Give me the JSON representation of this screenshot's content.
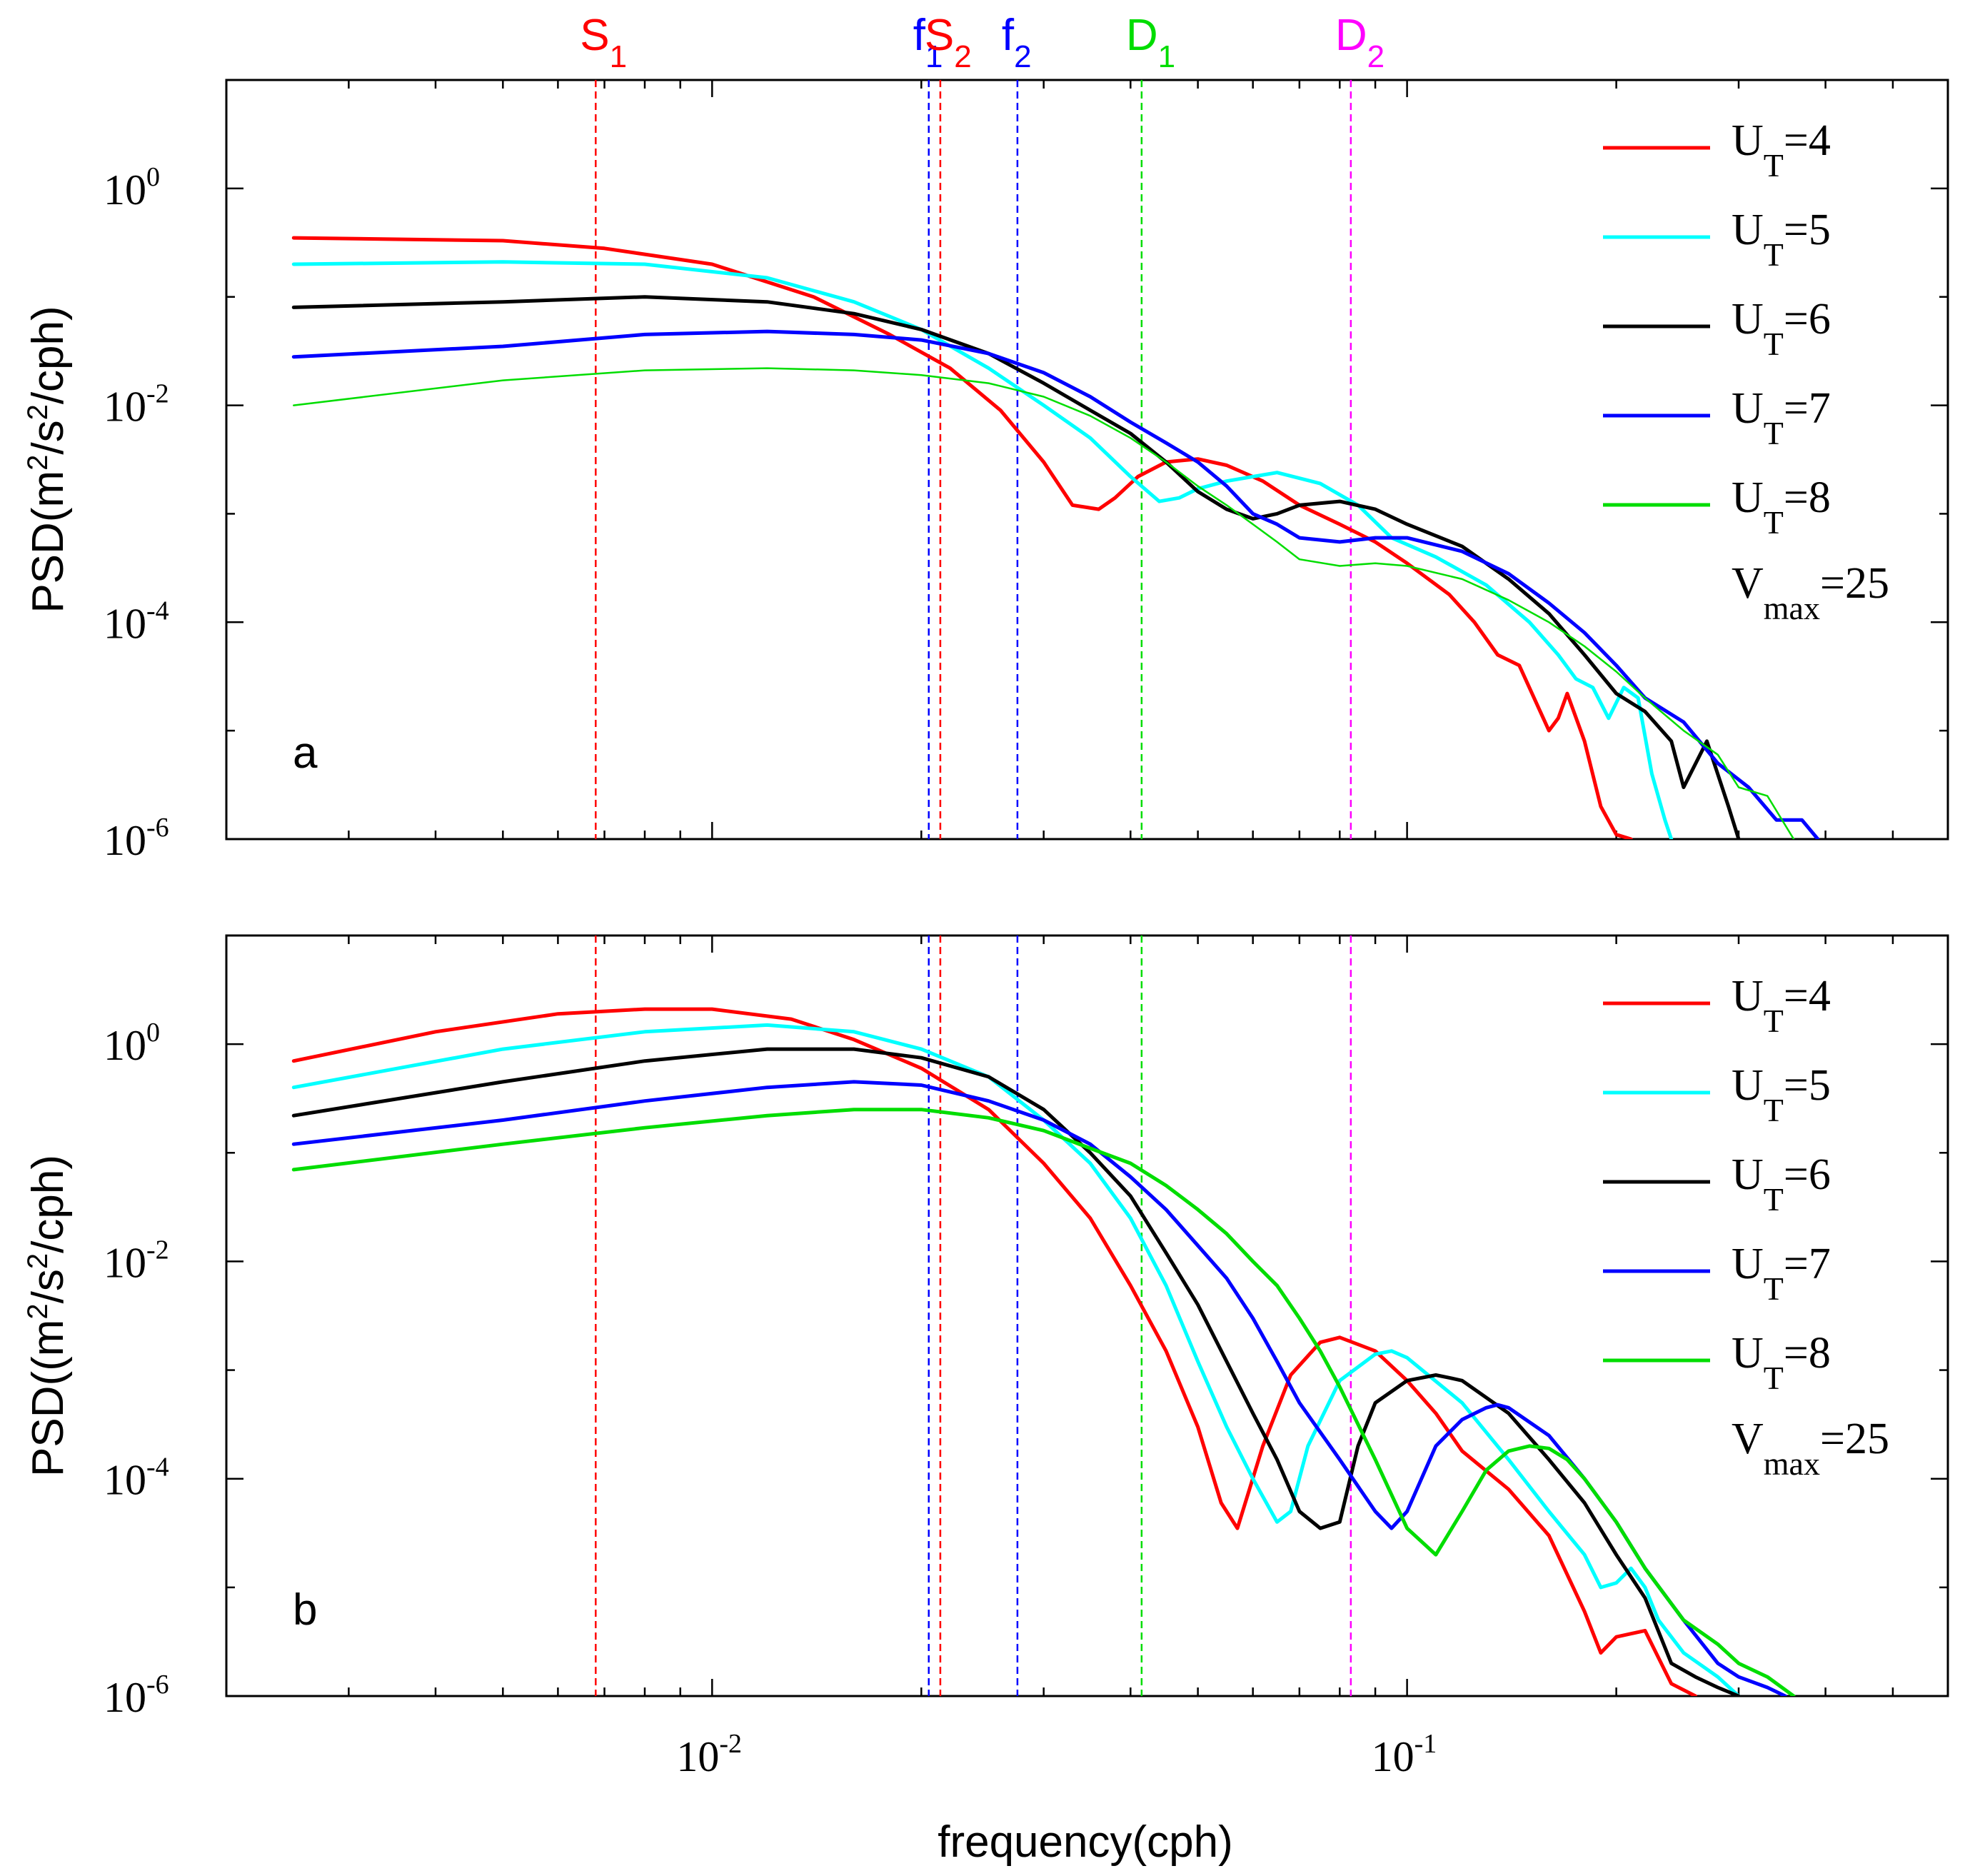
{
  "chart_data": [
    {
      "type": "line",
      "panel": "a",
      "panel_letter": "a",
      "xscale": "log",
      "yscale": "log",
      "xlim": [
        0.002,
        0.6
      ],
      "ylim": [
        1e-06,
        10
      ],
      "ylabel": "PSD(m²/s²/cph)",
      "ylabel_parts": {
        "a": "PSD(m",
        "b": "2",
        "c": "/s",
        "d": "2",
        "e": "/cph)"
      },
      "annotation": {
        "main": "V",
        "sub": "max",
        "rest": "=25"
      },
      "series": [
        {
          "name": "UT=4",
          "label_main": "U",
          "label_sub": "T",
          "label_rest": "=4",
          "color": "#ff0000",
          "width": 5,
          "x": [
            0.0025,
            0.005,
            0.007,
            0.01,
            0.014,
            0.018,
            0.022,
            0.026,
            0.03,
            0.033,
            0.036,
            0.038,
            0.041,
            0.045,
            0.05,
            0.055,
            0.062,
            0.07,
            0.08,
            0.09,
            0.1,
            0.115,
            0.125,
            0.135,
            0.145,
            0.16,
            0.165,
            0.17,
            0.18,
            0.19,
            0.2,
            0.21
          ],
          "y": [
            0.35,
            0.33,
            0.28,
            0.2,
            0.1,
            0.045,
            0.022,
            0.009,
            0.003,
            0.0012,
            0.0011,
            0.0014,
            0.0022,
            0.003,
            0.0032,
            0.0028,
            0.002,
            0.0012,
            0.0008,
            0.00055,
            0.00035,
            0.00018,
            0.0001,
            5e-05,
            4e-05,
            1e-05,
            1.3e-05,
            2.2e-05,
            8e-06,
            2e-06,
            1.1e-06,
            1e-06
          ]
        },
        {
          "name": "UT=5",
          "label_main": "U",
          "label_sub": "T",
          "label_rest": "=5",
          "color": "#00ffff",
          "width": 5,
          "x": [
            0.0025,
            0.005,
            0.008,
            0.012,
            0.016,
            0.02,
            0.025,
            0.03,
            0.035,
            0.04,
            0.044,
            0.047,
            0.05,
            0.055,
            0.065,
            0.075,
            0.085,
            0.095,
            0.11,
            0.13,
            0.15,
            0.165,
            0.175,
            0.185,
            0.195,
            0.205,
            0.215,
            0.225,
            0.235,
            0.24
          ],
          "y": [
            0.2,
            0.21,
            0.2,
            0.15,
            0.09,
            0.05,
            0.022,
            0.01,
            0.005,
            0.0022,
            0.0013,
            0.0014,
            0.0017,
            0.002,
            0.0024,
            0.0019,
            0.0012,
            0.0006,
            0.0004,
            0.00022,
            0.0001,
            5e-05,
            3e-05,
            2.5e-05,
            1.3e-05,
            2.5e-05,
            2e-05,
            4e-06,
            1.5e-06,
            1e-06
          ]
        },
        {
          "name": "UT=6",
          "label_main": "U",
          "label_sub": "T",
          "label_rest": "=6",
          "color": "#000000",
          "width": 5,
          "x": [
            0.0025,
            0.005,
            0.008,
            0.012,
            0.016,
            0.02,
            0.025,
            0.03,
            0.035,
            0.04,
            0.045,
            0.05,
            0.055,
            0.06,
            0.065,
            0.07,
            0.08,
            0.09,
            0.1,
            0.12,
            0.14,
            0.16,
            0.18,
            0.2,
            0.22,
            0.24,
            0.25,
            0.27,
            0.29,
            0.3
          ],
          "y": [
            0.08,
            0.09,
            0.1,
            0.09,
            0.07,
            0.05,
            0.03,
            0.016,
            0.009,
            0.0055,
            0.003,
            0.0016,
            0.0011,
            0.0009,
            0.001,
            0.0012,
            0.0013,
            0.0011,
            0.0008,
            0.0005,
            0.00025,
            0.00012,
            5e-05,
            2.2e-05,
            1.5e-05,
            8e-06,
            3e-06,
            8e-06,
            2e-06,
            1e-06
          ]
        },
        {
          "name": "UT=7",
          "label_main": "U",
          "label_sub": "T",
          "label_rest": "=7",
          "color": "#0000ff",
          "width": 5,
          "x": [
            0.0025,
            0.005,
            0.008,
            0.012,
            0.016,
            0.02,
            0.025,
            0.03,
            0.035,
            0.04,
            0.045,
            0.05,
            0.055,
            0.06,
            0.065,
            0.07,
            0.08,
            0.09,
            0.1,
            0.12,
            0.14,
            0.16,
            0.18,
            0.2,
            0.22,
            0.25,
            0.28,
            0.31,
            0.34,
            0.37,
            0.39
          ],
          "y": [
            0.028,
            0.035,
            0.045,
            0.048,
            0.045,
            0.04,
            0.03,
            0.02,
            0.012,
            0.007,
            0.0045,
            0.003,
            0.0018,
            0.001,
            0.0008,
            0.0006,
            0.00055,
            0.0006,
            0.0006,
            0.00045,
            0.00028,
            0.00015,
            8e-05,
            4e-05,
            2e-05,
            1.2e-05,
            5e-06,
            3e-06,
            1.5e-06,
            1.5e-06,
            1e-06
          ]
        },
        {
          "name": "UT=8",
          "label_main": "U",
          "label_sub": "T",
          "label_rest": "=8",
          "color": "#00dd00",
          "width": 2.5,
          "x": [
            0.0025,
            0.005,
            0.008,
            0.012,
            0.016,
            0.02,
            0.025,
            0.03,
            0.035,
            0.04,
            0.045,
            0.05,
            0.055,
            0.06,
            0.065,
            0.07,
            0.08,
            0.09,
            0.1,
            0.12,
            0.14,
            0.16,
            0.18,
            0.2,
            0.22,
            0.25,
            0.28,
            0.3,
            0.33,
            0.36
          ],
          "y": [
            0.01,
            0.017,
            0.021,
            0.022,
            0.021,
            0.019,
            0.016,
            0.012,
            0.008,
            0.005,
            0.003,
            0.0018,
            0.0012,
            0.0008,
            0.00055,
            0.00038,
            0.00033,
            0.00035,
            0.00033,
            0.00025,
            0.00016,
            0.0001,
            6e-05,
            3.5e-05,
            2e-05,
            1e-05,
            6e-06,
            3e-06,
            2.5e-06,
            1e-06
          ]
        }
      ]
    },
    {
      "type": "line",
      "panel": "b",
      "panel_letter": "b",
      "xscale": "log",
      "yscale": "log",
      "xlim": [
        0.002,
        0.6
      ],
      "ylim": [
        1e-06,
        10
      ],
      "xlabel": "frequency(cph)",
      "ylabel": "PSD((m²/s²/cph)",
      "ylabel_parts": {
        "a": "PSD((m",
        "b": "2",
        "c": "/s",
        "d": "2",
        "e": "/cph)"
      },
      "annotation": {
        "main": "V",
        "sub": "max",
        "rest": "=25"
      },
      "series": [
        {
          "name": "UT=4",
          "label_main": "U",
          "label_sub": "T",
          "label_rest": "=4",
          "color": "#ff0000",
          "width": 5,
          "x": [
            0.0025,
            0.004,
            0.006,
            0.008,
            0.01,
            0.013,
            0.016,
            0.02,
            0.025,
            0.03,
            0.035,
            0.04,
            0.045,
            0.05,
            0.054,
            0.057,
            0.062,
            0.068,
            0.075,
            0.08,
            0.09,
            0.1,
            0.11,
            0.12,
            0.14,
            0.16,
            0.18,
            0.19,
            0.2,
            0.22,
            0.24,
            0.26
          ],
          "y": [
            0.7,
            1.3,
            1.9,
            2.1,
            2.1,
            1.7,
            1.1,
            0.6,
            0.25,
            0.08,
            0.025,
            0.006,
            0.0015,
            0.0003,
            6e-05,
            3.5e-05,
            0.0002,
            0.0009,
            0.0018,
            0.002,
            0.0015,
            0.0008,
            0.0004,
            0.00018,
            8e-05,
            3e-05,
            6e-06,
            2.5e-06,
            3.5e-06,
            4e-06,
            1.3e-06,
            1e-06
          ]
        },
        {
          "name": "UT=5",
          "label_main": "U",
          "label_sub": "T",
          "label_rest": "=5",
          "color": "#00ffff",
          "width": 5,
          "x": [
            0.0025,
            0.005,
            0.008,
            0.012,
            0.016,
            0.02,
            0.025,
            0.03,
            0.035,
            0.04,
            0.045,
            0.05,
            0.055,
            0.06,
            0.065,
            0.068,
            0.072,
            0.08,
            0.09,
            0.095,
            0.1,
            0.12,
            0.14,
            0.16,
            0.18,
            0.19,
            0.2,
            0.21,
            0.22,
            0.23,
            0.25,
            0.28,
            0.3
          ],
          "y": [
            0.4,
            0.9,
            1.3,
            1.5,
            1.3,
            0.9,
            0.5,
            0.2,
            0.08,
            0.025,
            0.006,
            0.0012,
            0.0003,
            0.0001,
            4e-05,
            5e-05,
            0.0002,
            0.0008,
            0.0014,
            0.0015,
            0.0013,
            0.0005,
            0.00015,
            5e-05,
            2e-05,
            1e-05,
            1.1e-05,
            1.5e-05,
            1e-05,
            5e-06,
            2.5e-06,
            1.5e-06,
            1e-06
          ]
        },
        {
          "name": "UT=6",
          "label_main": "U",
          "label_sub": "T",
          "label_rest": "=6",
          "color": "#000000",
          "width": 5,
          "x": [
            0.0025,
            0.005,
            0.008,
            0.012,
            0.016,
            0.02,
            0.025,
            0.03,
            0.035,
            0.04,
            0.045,
            0.05,
            0.055,
            0.06,
            0.065,
            0.07,
            0.075,
            0.08,
            0.085,
            0.09,
            0.1,
            0.11,
            0.115,
            0.12,
            0.14,
            0.16,
            0.18,
            0.2,
            0.22,
            0.24,
            0.26,
            0.28,
            0.3
          ],
          "y": [
            0.22,
            0.45,
            0.7,
            0.9,
            0.9,
            0.75,
            0.5,
            0.25,
            0.1,
            0.04,
            0.012,
            0.004,
            0.0012,
            0.0004,
            0.00015,
            5e-05,
            3.5e-05,
            4e-05,
            0.0002,
            0.0005,
            0.0008,
            0.0009,
            0.00085,
            0.0008,
            0.0004,
            0.00015,
            6e-05,
            2e-05,
            8e-06,
            2e-06,
            1.5e-06,
            1.2e-06,
            1e-06
          ]
        },
        {
          "name": "UT=7",
          "label_main": "U",
          "label_sub": "T",
          "label_rest": "=7",
          "color": "#0000ff",
          "width": 5,
          "x": [
            0.0025,
            0.005,
            0.008,
            0.012,
            0.016,
            0.02,
            0.025,
            0.03,
            0.035,
            0.04,
            0.045,
            0.05,
            0.055,
            0.06,
            0.065,
            0.07,
            0.08,
            0.09,
            0.095,
            0.1,
            0.11,
            0.12,
            0.13,
            0.135,
            0.14,
            0.16,
            0.18,
            0.2,
            0.22,
            0.25,
            0.28,
            0.3,
            0.33,
            0.35
          ],
          "y": [
            0.12,
            0.2,
            0.3,
            0.4,
            0.45,
            0.42,
            0.3,
            0.2,
            0.12,
            0.06,
            0.03,
            0.014,
            0.007,
            0.003,
            0.0012,
            0.0005,
            0.00015,
            5e-05,
            3.5e-05,
            5e-05,
            0.0002,
            0.00035,
            0.00045,
            0.00048,
            0.00045,
            0.00025,
            0.0001,
            4e-05,
            1.5e-05,
            5e-06,
            2e-06,
            1.5e-06,
            1.2e-06,
            1e-06
          ]
        },
        {
          "name": "UT=8",
          "label_main": "U",
          "label_sub": "T",
          "label_rest": "=8",
          "color": "#00dd00",
          "width": 5,
          "x": [
            0.0025,
            0.005,
            0.008,
            0.012,
            0.016,
            0.02,
            0.025,
            0.03,
            0.035,
            0.04,
            0.045,
            0.05,
            0.055,
            0.06,
            0.065,
            0.07,
            0.075,
            0.08,
            0.09,
            0.1,
            0.11,
            0.12,
            0.13,
            0.14,
            0.15,
            0.16,
            0.17,
            0.18,
            0.2,
            0.22,
            0.25,
            0.28,
            0.3,
            0.33,
            0.36
          ],
          "y": [
            0.07,
            0.12,
            0.17,
            0.22,
            0.25,
            0.25,
            0.21,
            0.16,
            0.11,
            0.08,
            0.05,
            0.03,
            0.018,
            0.01,
            0.006,
            0.003,
            0.0015,
            0.0007,
            0.00015,
            3.5e-05,
            2e-05,
            5e-05,
            0.00012,
            0.00018,
            0.0002,
            0.00019,
            0.00015,
            0.0001,
            4e-05,
            1.5e-05,
            5e-06,
            3e-06,
            2e-06,
            1.5e-06,
            1e-06
          ]
        }
      ]
    }
  ],
  "x_tick_labels": [
    {
      "value": 0.01,
      "base": "10",
      "exp": "-2"
    },
    {
      "value": 0.1,
      "base": "10",
      "exp": "-1"
    }
  ],
  "y_tick_labels": [
    {
      "value": 1,
      "base": "10",
      "exp": "0"
    },
    {
      "value": 0.01,
      "base": "10",
      "exp": "-2"
    },
    {
      "value": 0.0001,
      "base": "10",
      "exp": "-4"
    },
    {
      "value": 1e-06,
      "base": "10",
      "exp": "-6"
    }
  ],
  "reference_lines": [
    {
      "name": "S1",
      "main": "S",
      "sub": "1",
      "freq": 0.0068,
      "color": "#ff0000"
    },
    {
      "name": "f1",
      "main": "f",
      "sub": "1",
      "freq": 0.0205,
      "color": "#0000ff"
    },
    {
      "name": "S2",
      "main": "S",
      "sub": "2",
      "freq": 0.0213,
      "color": "#ff0000"
    },
    {
      "name": "f2",
      "main": "f",
      "sub": "2",
      "freq": 0.0275,
      "color": "#0000ff"
    },
    {
      "name": "D1",
      "main": "D",
      "sub": "1",
      "freq": 0.0415,
      "color": "#00dd00"
    },
    {
      "name": "D2",
      "main": "D",
      "sub": "2",
      "freq": 0.083,
      "color": "#ff00ff"
    }
  ]
}
